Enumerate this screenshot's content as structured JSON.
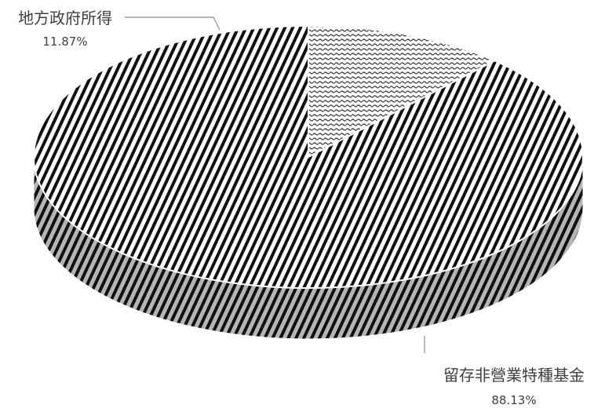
{
  "chart_data": {
    "type": "pie",
    "style": "3d",
    "categories": [
      "地方政府所得",
      "留存非營業特種基金"
    ],
    "values": [
      11.87,
      88.13
    ],
    "percent_labels": [
      "11.87%",
      "88.13%"
    ],
    "title": "",
    "legend": "none"
  }
}
